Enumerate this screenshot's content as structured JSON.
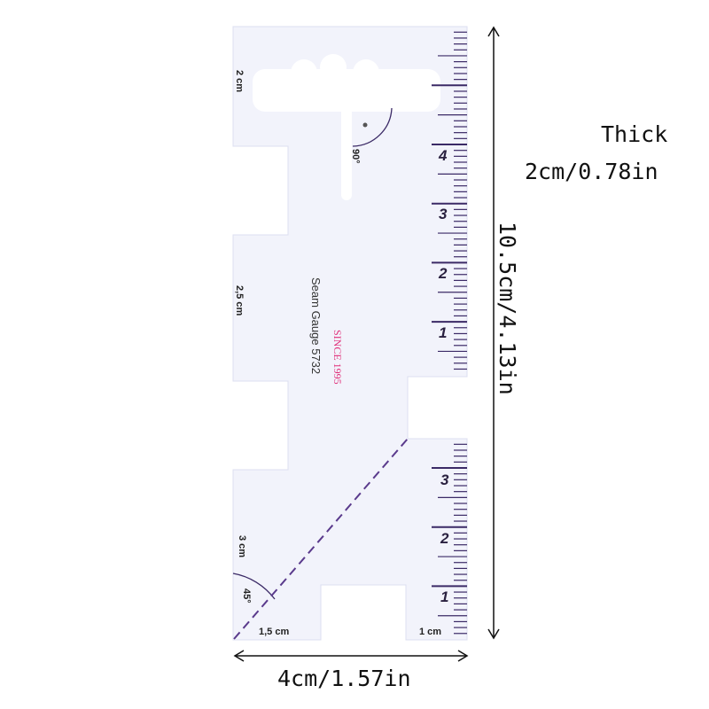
{
  "product": {
    "ruler_labels": {
      "top_width": "2 cm",
      "middle_width": "2,5 cm",
      "lower_width": "3 cm",
      "bottom_left": "1,5 cm",
      "bottom_right": "1 cm",
      "angle_90": "90°",
      "angle_45": "45°"
    },
    "brand": {
      "since": "SINCE 1995",
      "model": "Seam Gauge 5732"
    },
    "scale_top": [
      "4",
      "3",
      "2",
      "1"
    ],
    "scale_bottom": [
      "3",
      "2",
      "1"
    ]
  },
  "dimensions": {
    "thick_title": "Thick",
    "thick_value": "2cm/0.78in",
    "height": "10.5cm/4.13in",
    "width": "4cm/1.57in"
  },
  "colors": {
    "ruler_fill": "#f2f3fb",
    "tick": "#3b2a66",
    "dashed_line": "#5a3a8c",
    "brand_pink": "#e0307a"
  }
}
